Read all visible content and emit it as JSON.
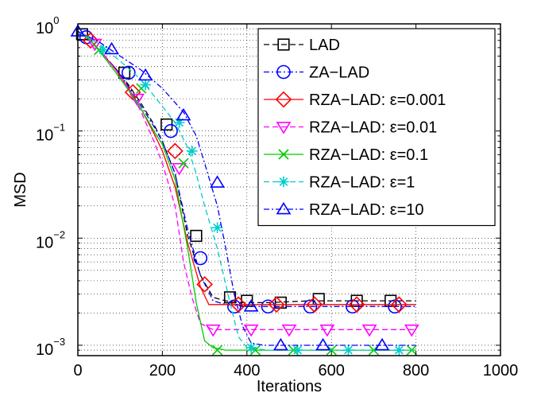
{
  "chart_data": {
    "type": "line",
    "xlabel": "Iterations",
    "ylabel": "MSD",
    "xlim": [
      0,
      1000
    ],
    "ylim": [
      0.0008,
      1
    ],
    "yscale": "log",
    "grid": true,
    "legend_position": "top-right",
    "x_ticks": [
      0,
      200,
      400,
      600,
      800,
      1000
    ],
    "x_tick_labels": [
      "0",
      "200",
      "400",
      "600",
      "800",
      "1000"
    ],
    "y_ticks": [
      {
        "value": 1,
        "base": "10",
        "exp": "0"
      },
      {
        "value": 0.1,
        "base": "10",
        "exp": "−1"
      },
      {
        "value": 0.01,
        "base": "10",
        "exp": "−2"
      },
      {
        "value": 0.001,
        "base": "10",
        "exp": "−3"
      }
    ],
    "series": [
      {
        "name": "LAD",
        "color": "#000000",
        "dash": "dash",
        "marker": "square",
        "x": [
          0,
          30,
          60,
          90,
          120,
          150,
          180,
          200,
          230,
          260,
          290,
          320,
          350,
          380,
          450,
          550,
          650,
          750,
          800
        ],
        "y": [
          0.85,
          0.7,
          0.52,
          0.38,
          0.27,
          0.18,
          0.115,
          0.08,
          0.04,
          0.0105,
          0.0045,
          0.0028,
          0.0026,
          0.0025,
          0.0025,
          0.0026,
          0.0026,
          0.0026,
          0.0026
        ],
        "markers_x": [
          10,
          110,
          210,
          280,
          360,
          400,
          480,
          570,
          660,
          740
        ],
        "markers_y": [
          0.8,
          0.35,
          0.115,
          0.0105,
          0.0028,
          0.0026,
          0.0025,
          0.0027,
          0.0026,
          0.0026
        ]
      },
      {
        "name": "ZA−LAD",
        "color": "#0000ff",
        "dash": "dashdot",
        "marker": "circle",
        "x": [
          0,
          30,
          60,
          90,
          120,
          150,
          180,
          200,
          230,
          260,
          290,
          320,
          350,
          400,
          500,
          600,
          700,
          800
        ],
        "y": [
          0.85,
          0.7,
          0.52,
          0.38,
          0.26,
          0.17,
          0.11,
          0.08,
          0.04,
          0.012,
          0.0045,
          0.0026,
          0.0024,
          0.0023,
          0.0023,
          0.0023,
          0.0023,
          0.0023
        ],
        "markers_x": [
          20,
          120,
          220,
          290,
          370,
          450,
          550,
          650,
          750
        ],
        "markers_y": [
          0.75,
          0.35,
          0.1,
          0.0065,
          0.0023,
          0.0023,
          0.0023,
          0.0023,
          0.0023
        ]
      },
      {
        "name": "RZA−LAD: ε=0.001",
        "color": "#ff0000",
        "dash": "solid",
        "marker": "diamond",
        "x": [
          0,
          30,
          60,
          90,
          120,
          150,
          180,
          200,
          230,
          260,
          290,
          310,
          350,
          400,
          500,
          600,
          700,
          800
        ],
        "y": [
          0.85,
          0.7,
          0.52,
          0.37,
          0.25,
          0.16,
          0.095,
          0.065,
          0.03,
          0.009,
          0.0035,
          0.0024,
          0.0024,
          0.0024,
          0.0024,
          0.0024,
          0.0024,
          0.0024
        ],
        "markers_x": [
          30,
          130,
          230,
          300,
          380,
          470,
          560,
          660,
          760
        ],
        "markers_y": [
          0.7,
          0.23,
          0.065,
          0.0037,
          0.0024,
          0.0024,
          0.0024,
          0.0024,
          0.0024
        ]
      },
      {
        "name": "RZA−LAD: ε=0.01",
        "color": "#ff00ff",
        "dash": "dash",
        "marker": "triangle-down",
        "x": [
          0,
          30,
          60,
          90,
          120,
          150,
          180,
          200,
          230,
          250,
          270,
          290,
          320,
          350,
          400,
          500,
          600,
          700,
          800
        ],
        "y": [
          0.85,
          0.7,
          0.52,
          0.37,
          0.25,
          0.15,
          0.08,
          0.05,
          0.02,
          0.006,
          0.0028,
          0.0016,
          0.0014,
          0.0014,
          0.0014,
          0.0014,
          0.0014,
          0.0014,
          0.0014
        ],
        "markers_x": [
          40,
          140,
          240,
          320,
          410,
          500,
          590,
          690,
          790
        ],
        "markers_y": [
          0.65,
          0.2,
          0.045,
          0.0014,
          0.0014,
          0.0014,
          0.0014,
          0.0014,
          0.0014
        ]
      },
      {
        "name": "RZA−LAD: ε=0.1",
        "color": "#00cc00",
        "dash": "solid",
        "marker": "x",
        "x": [
          0,
          30,
          60,
          90,
          120,
          150,
          180,
          200,
          230,
          260,
          280,
          300,
          320,
          350,
          400,
          500,
          600,
          700,
          800
        ],
        "y": [
          0.85,
          0.7,
          0.5,
          0.35,
          0.24,
          0.16,
          0.1,
          0.075,
          0.035,
          0.008,
          0.0025,
          0.0011,
          0.00095,
          0.0009,
          0.0009,
          0.0009,
          0.0009,
          0.0009,
          0.0009
        ],
        "markers_x": [
          50,
          150,
          250,
          330,
          420,
          510,
          600,
          700,
          790
        ],
        "markers_y": [
          0.57,
          0.25,
          0.05,
          0.0009,
          0.0009,
          0.0009,
          0.0009,
          0.0009,
          0.0009
        ]
      },
      {
        "name": "RZA−LAD: ε=1",
        "color": "#00cccc",
        "dash": "dash",
        "marker": "star",
        "x": [
          0,
          50,
          100,
          150,
          200,
          230,
          260,
          280,
          300,
          330,
          360,
          380,
          400,
          450,
          500,
          600,
          700,
          800
        ],
        "y": [
          0.85,
          0.65,
          0.45,
          0.3,
          0.17,
          0.12,
          0.07,
          0.04,
          0.02,
          0.008,
          0.0025,
          0.0012,
          0.00095,
          0.0009,
          0.0009,
          0.0009,
          0.0009,
          0.0009
        ],
        "markers_x": [
          60,
          160,
          240,
          270,
          330,
          410,
          520,
          640,
          760
        ],
        "markers_y": [
          0.57,
          0.27,
          0.12,
          0.065,
          0.0125,
          0.00095,
          0.0009,
          0.0009,
          0.0009
        ]
      },
      {
        "name": "RZA−LAD: ε=10",
        "color": "#0000ff",
        "dash": "dashdot",
        "marker": "triangle-up",
        "x": [
          0,
          50,
          100,
          150,
          200,
          250,
          280,
          300,
          330,
          350,
          370,
          390,
          410,
          440,
          500,
          600,
          700,
          800
        ],
        "y": [
          0.85,
          0.68,
          0.5,
          0.37,
          0.25,
          0.15,
          0.09,
          0.05,
          0.02,
          0.008,
          0.003,
          0.0015,
          0.00105,
          0.001,
          0.001,
          0.001,
          0.001,
          0.001
        ],
        "markers_x": [
          0,
          80,
          160,
          250,
          330,
          410,
          480,
          580,
          720
        ],
        "markers_y": [
          0.85,
          0.58,
          0.33,
          0.14,
          0.033,
          0.0023,
          0.001,
          0.001,
          0.001
        ]
      }
    ]
  }
}
